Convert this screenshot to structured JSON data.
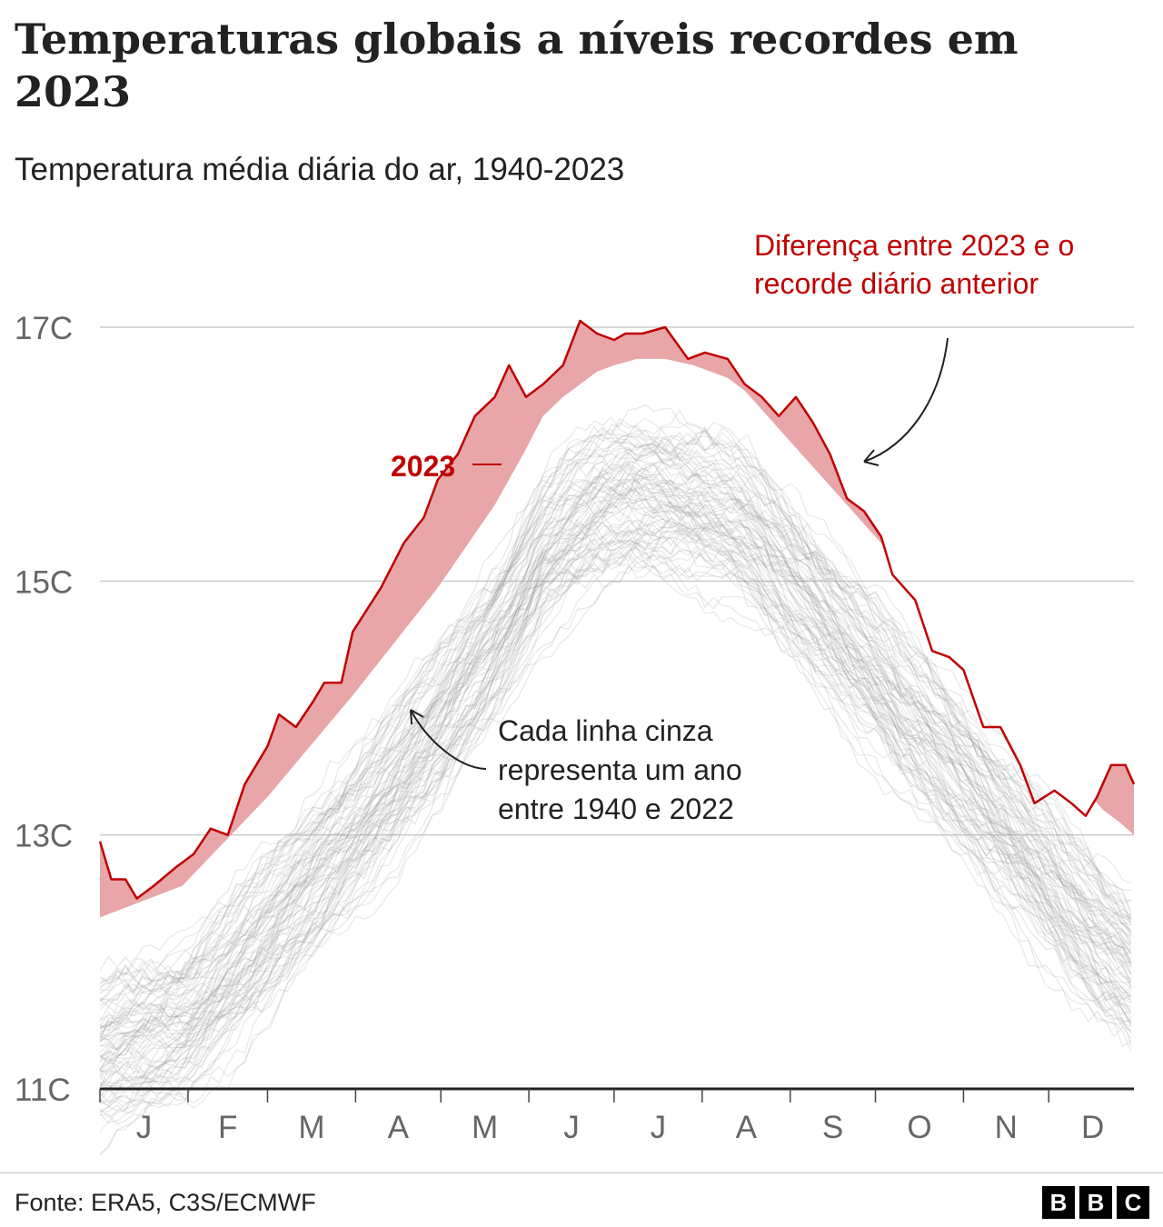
{
  "title": "Temperaturas globais a níveis recordes em 2023",
  "subtitle": "Temperatura média diária do ar, 1940-2023",
  "source": "Fonte: ERA5, C3S/ECMWF",
  "logo": [
    "B",
    "B",
    "C"
  ],
  "colors": {
    "record_2023": "#c00000",
    "difference_fill": "#e8a6a8",
    "historical_lines": "#999999",
    "grid": "#cccccc"
  },
  "chart_data": {
    "type": "line",
    "ylim": [
      11,
      17.8
    ],
    "y_ticks": [
      11,
      13,
      15,
      17
    ],
    "y_tick_labels": [
      "11C",
      "13C",
      "15C",
      "17C"
    ],
    "months": [
      "J",
      "F",
      "M",
      "A",
      "M",
      "J",
      "J",
      "A",
      "S",
      "O",
      "N",
      "D"
    ],
    "month_days": [
      31,
      28,
      31,
      30,
      31,
      30,
      31,
      31,
      30,
      31,
      30,
      31
    ],
    "grid": true,
    "series_2023": {
      "name": "2023",
      "x": [
        1,
        5,
        10,
        14,
        20,
        28,
        34,
        40,
        46,
        52,
        56,
        60,
        64,
        70,
        76,
        80,
        86,
        90,
        100,
        108,
        115,
        120,
        127,
        133,
        140,
        145,
        151,
        157,
        164,
        170,
        176,
        182,
        186,
        192,
        200,
        208,
        214,
        222,
        228,
        234,
        240,
        246,
        252,
        258,
        264,
        270,
        276,
        280,
        288,
        294,
        300,
        305,
        312,
        318,
        325,
        330,
        337,
        343,
        348,
        352,
        357,
        362,
        365
      ],
      "values": [
        12.95,
        12.65,
        12.65,
        12.5,
        12.6,
        12.75,
        12.85,
        13.05,
        13.0,
        13.4,
        13.55,
        13.7,
        13.95,
        13.85,
        14.05,
        14.2,
        14.2,
        14.6,
        14.95,
        15.3,
        15.5,
        15.8,
        16.0,
        16.3,
        16.45,
        16.7,
        16.45,
        16.55,
        16.7,
        17.05,
        16.95,
        16.9,
        16.95,
        16.95,
        17.0,
        16.75,
        16.8,
        16.75,
        16.55,
        16.45,
        16.3,
        16.45,
        16.25,
        16.0,
        15.65,
        15.55,
        15.35,
        15.05,
        14.85,
        14.45,
        14.4,
        14.3,
        13.85,
        13.85,
        13.55,
        13.25,
        13.35,
        13.25,
        13.15,
        13.3,
        13.55,
        13.55,
        13.4
      ]
    },
    "previous_record": {
      "x": [
        1,
        30,
        60,
        90,
        120,
        140,
        150,
        157,
        164,
        170,
        176,
        182,
        190,
        200,
        210,
        216,
        222,
        228,
        234,
        240,
        246,
        252,
        258,
        264,
        270,
        276,
        282,
        288,
        294,
        300,
        306,
        312,
        318,
        324,
        330,
        336,
        342,
        348,
        354,
        360,
        365
      ],
      "values": [
        12.35,
        12.6,
        13.3,
        14.1,
        14.95,
        15.6,
        16.0,
        16.3,
        16.45,
        16.55,
        16.65,
        16.7,
        16.75,
        16.75,
        16.7,
        16.65,
        16.6,
        16.5,
        16.35,
        16.2,
        16.05,
        15.9,
        15.75,
        15.6,
        15.45,
        15.3,
        15.1,
        14.95,
        14.8,
        14.65,
        14.5,
        14.35,
        14.2,
        14.05,
        13.85,
        13.7,
        13.5,
        13.35,
        13.2,
        13.1,
        13.0
      ]
    },
    "historical_years": {
      "first": 1940,
      "last": 2022
    },
    "annotations": [
      {
        "text": "2023",
        "color": "#c00000"
      },
      {
        "text": "Diferença entre 2023 e o recorde diário anterior",
        "color": "#c00000",
        "lines": [
          "Diferença entre 2023 e o",
          "recorde diário anterior"
        ]
      },
      {
        "text": "Cada linha cinza representa um ano entre 1940 e 2022",
        "color": "#222222",
        "lines": [
          "Cada linha cinza",
          "representa um ano",
          "entre 1940 e 2022"
        ]
      }
    ]
  }
}
